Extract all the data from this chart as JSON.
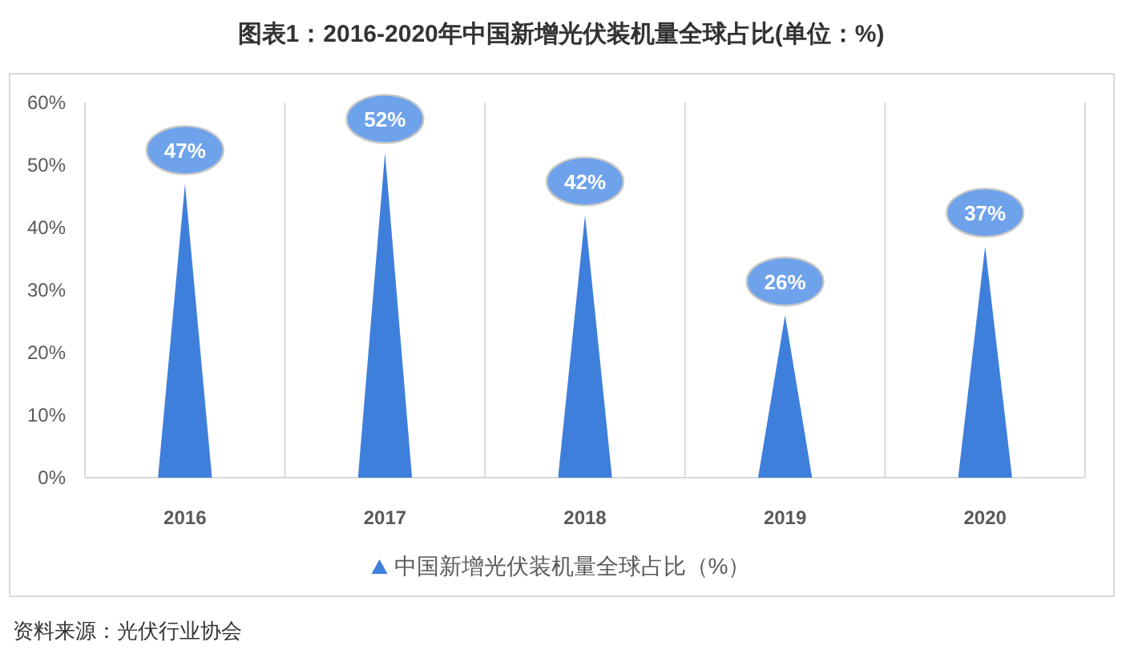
{
  "chart_data": {
    "type": "bar",
    "title": "图表1：2016-2020年中国新增光伏装机量全球占比(单位：%)",
    "categories": [
      "2016",
      "2017",
      "2018",
      "2019",
      "2020"
    ],
    "series": [
      {
        "name": "中国新增光伏装机量全球占比（%）",
        "color": "#3f7fdc",
        "values": [
          47,
          52,
          42,
          26,
          37
        ],
        "value_labels": [
          "47%",
          "52%",
          "42%",
          "26%",
          "37%"
        ]
      }
    ],
    "ylim": [
      0,
      60
    ],
    "yticks": [
      {
        "value": 0,
        "label": "0%"
      },
      {
        "value": 10,
        "label": "10%"
      },
      {
        "value": 20,
        "label": "20%"
      },
      {
        "value": 30,
        "label": "30%"
      },
      {
        "value": 40,
        "label": "40%"
      },
      {
        "value": 50,
        "label": "50%"
      },
      {
        "value": 60,
        "label": "60%"
      }
    ],
    "grid": "x",
    "legend": "bottom",
    "marker": "triangle",
    "annotations": [
      "资料来源：光伏行业协会"
    ]
  }
}
